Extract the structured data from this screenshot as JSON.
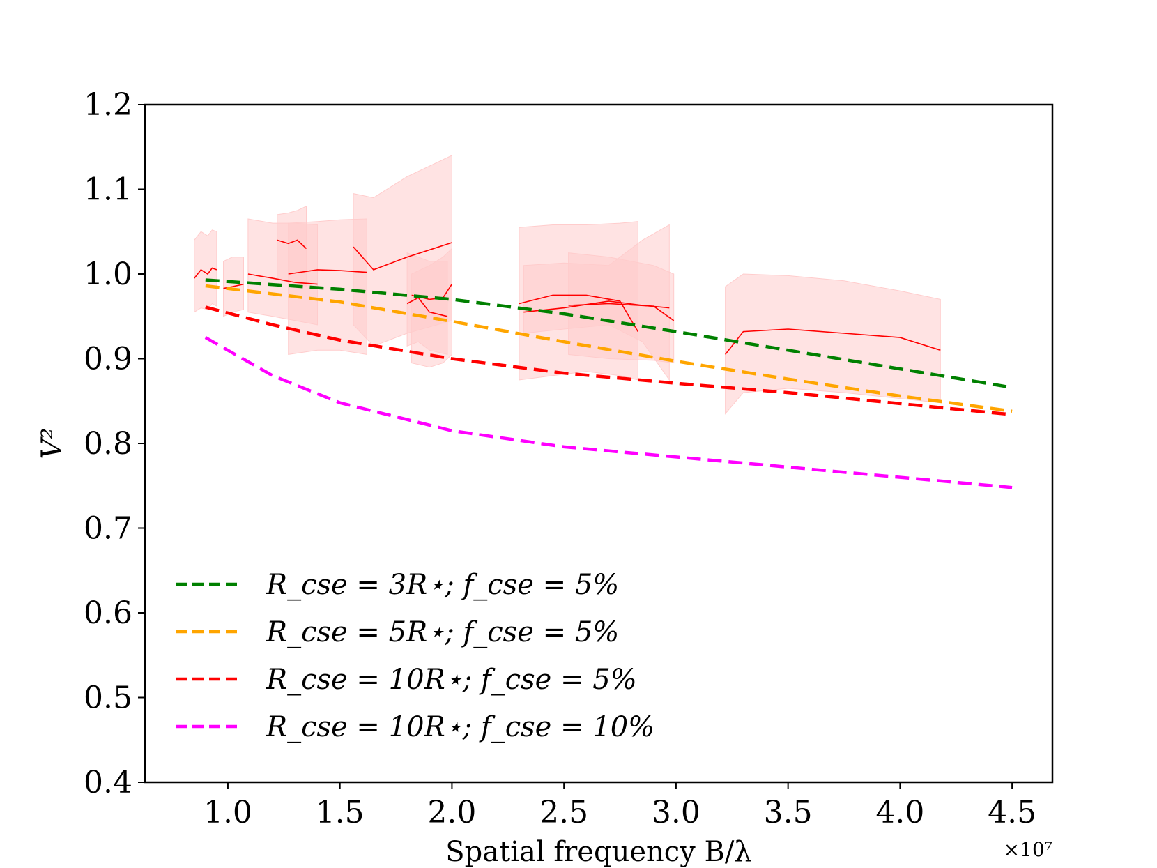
{
  "chart_data": {
    "type": "line",
    "title": "",
    "xlabel": "Spatial frequency B/λ",
    "ylabel": "V²",
    "x_offset_label": "×10⁷",
    "xlim": [
      0.63,
      4.68
    ],
    "ylim": [
      0.4,
      1.2
    ],
    "xticks": [
      1.0,
      1.5,
      2.0,
      2.5,
      3.0,
      3.5,
      4.0,
      4.5
    ],
    "xtick_labels": [
      "1.0",
      "1.5",
      "2.0",
      "2.5",
      "3.0",
      "3.5",
      "4.0",
      "4.5"
    ],
    "yticks": [
      0.4,
      0.5,
      0.6,
      0.7,
      0.8,
      0.9,
      1.0,
      1.1,
      1.2
    ],
    "ytick_labels": [
      "0.4",
      "0.5",
      "0.6",
      "0.7",
      "0.8",
      "0.9",
      "1.0",
      "1.1",
      "1.2"
    ],
    "grid": false,
    "legend_position": "lower-left",
    "series": [
      {
        "name": "R_cse = 3R⋆; f_cse = 5%",
        "color": "#008000",
        "style": "dashed",
        "x": [
          0.9,
          1.5,
          2.0,
          2.5,
          3.0,
          3.5,
          4.0,
          4.5
        ],
        "y": [
          0.993,
          0.982,
          0.97,
          0.953,
          0.932,
          0.91,
          0.888,
          0.866
        ]
      },
      {
        "name": "R_cse = 5R⋆; f_cse = 5%",
        "color": "#ffa500",
        "style": "dashed",
        "x": [
          0.9,
          1.5,
          2.0,
          2.5,
          3.0,
          3.5,
          4.0,
          4.5
        ],
        "y": [
          0.986,
          0.967,
          0.944,
          0.92,
          0.897,
          0.876,
          0.856,
          0.838
        ]
      },
      {
        "name": "R_cse = 10R⋆; f_cse = 5%",
        "color": "#ff0000",
        "style": "dashed",
        "x": [
          0.9,
          1.2,
          1.5,
          2.0,
          2.5,
          3.0,
          3.5,
          4.0,
          4.5
        ],
        "y": [
          0.961,
          0.94,
          0.922,
          0.9,
          0.883,
          0.871,
          0.86,
          0.847,
          0.834
        ]
      },
      {
        "name": "R_cse = 10R⋆; f_cse = 10%",
        "color": "#ff00ff",
        "style": "dashed",
        "x": [
          0.9,
          1.2,
          1.5,
          2.0,
          2.5,
          3.0,
          3.5,
          4.0,
          4.5
        ],
        "y": [
          0.925,
          0.88,
          0.848,
          0.815,
          0.796,
          0.784,
          0.772,
          0.76,
          0.748
        ]
      }
    ],
    "observations": {
      "color": "#ff0000",
      "band_color": "#ffcccc",
      "segments": [
        {
          "x": [
            0.85,
            0.88,
            0.91,
            0.93,
            0.95
          ],
          "y": [
            0.995,
            1.005,
            1.0,
            1.007,
            1.005
          ],
          "lo": [
            0.955,
            0.96,
            0.958,
            0.965,
            0.962
          ],
          "hi": [
            1.04,
            1.05,
            1.045,
            1.052,
            1.05
          ]
        },
        {
          "x": [
            0.98,
            1.02,
            1.07
          ],
          "y": [
            0.983,
            0.985,
            0.988
          ],
          "lo": [
            0.95,
            0.955,
            0.958
          ],
          "hi": [
            1.015,
            1.02,
            1.02
          ]
        },
        {
          "x": [
            1.09,
            1.2,
            1.3,
            1.4
          ],
          "y": [
            1.0,
            0.995,
            0.99,
            0.988
          ],
          "lo": [
            0.955,
            0.95,
            0.945,
            0.94
          ],
          "hi": [
            1.065,
            1.06,
            1.06,
            1.058
          ]
        },
        {
          "x": [
            1.22,
            1.27,
            1.31,
            1.35
          ],
          "y": [
            1.04,
            1.036,
            1.04,
            1.03
          ],
          "lo": [
            0.995,
            0.99,
            0.99,
            0.985
          ],
          "hi": [
            1.07,
            1.072,
            1.075,
            1.08
          ]
        },
        {
          "x": [
            1.27,
            1.4,
            1.5,
            1.62
          ],
          "y": [
            1.0,
            1.005,
            1.004,
            1.002
          ],
          "lo": [
            0.905,
            0.91,
            0.91,
            0.905
          ],
          "hi": [
            1.06,
            1.062,
            1.064,
            1.065
          ]
        },
        {
          "x": [
            1.56,
            1.65,
            1.8,
            2.0
          ],
          "y": [
            1.032,
            1.005,
            1.02,
            1.037
          ],
          "lo": [
            0.94,
            0.915,
            0.93,
            0.945
          ],
          "hi": [
            1.095,
            1.09,
            1.115,
            1.14
          ]
        },
        {
          "x": [
            1.8,
            1.85,
            1.9,
            1.98
          ],
          "y": [
            0.965,
            0.972,
            0.955,
            0.95
          ],
          "lo": [
            0.915,
            0.92,
            0.91,
            0.905
          ],
          "hi": [
            1.025,
            1.02,
            1.015,
            1.015
          ]
        },
        {
          "x": [
            1.82,
            1.9,
            1.96,
            2.0
          ],
          "y": [
            0.975,
            0.97,
            0.972,
            0.988
          ],
          "lo": [
            0.895,
            0.89,
            0.895,
            0.905
          ],
          "hi": [
            1.0,
            1.01,
            1.02,
            1.03
          ]
        },
        {
          "x": [
            2.3,
            2.45,
            2.6,
            2.75,
            2.83
          ],
          "y": [
            0.965,
            0.975,
            0.975,
            0.968,
            0.932
          ],
          "lo": [
            0.875,
            0.88,
            0.885,
            0.88,
            0.875
          ],
          "hi": [
            1.055,
            1.058,
            1.058,
            1.06,
            1.062
          ]
        },
        {
          "x": [
            2.32,
            2.5,
            2.7,
            2.85,
            2.97
          ],
          "y": [
            0.955,
            0.96,
            0.968,
            0.963,
            0.96
          ],
          "lo": [
            0.93,
            0.935,
            0.94,
            0.92,
            0.875
          ],
          "hi": [
            1.01,
            1.013,
            1.01,
            1.04,
            1.058
          ]
        },
        {
          "x": [
            2.52,
            2.7,
            2.9,
            2.99
          ],
          "y": [
            0.963,
            0.965,
            0.962,
            0.945
          ],
          "lo": [
            0.905,
            0.9,
            0.898,
            0.895
          ],
          "hi": [
            1.025,
            1.02,
            1.01,
            1.0
          ]
        },
        {
          "x": [
            3.22,
            3.3,
            3.5,
            3.75,
            4.0,
            4.18
          ],
          "y": [
            0.905,
            0.932,
            0.935,
            0.93,
            0.925,
            0.91
          ],
          "lo": [
            0.835,
            0.86,
            0.865,
            0.86,
            0.853,
            0.848
          ],
          "hi": [
            0.985,
            1.0,
            0.998,
            0.992,
            0.98,
            0.97
          ]
        }
      ]
    }
  }
}
